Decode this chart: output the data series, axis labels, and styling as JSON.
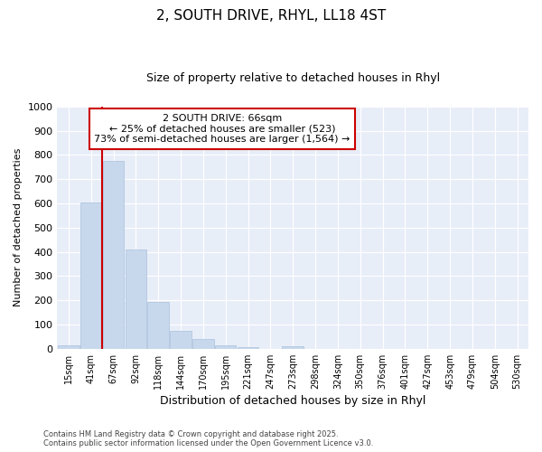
{
  "title": "2, SOUTH DRIVE, RHYL, LL18 4ST",
  "subtitle": "Size of property relative to detached houses in Rhyl",
  "xlabel": "Distribution of detached houses by size in Rhyl",
  "ylabel": "Number of detached properties",
  "categories": [
    "15sqm",
    "41sqm",
    "67sqm",
    "92sqm",
    "118sqm",
    "144sqm",
    "170sqm",
    "195sqm",
    "221sqm",
    "247sqm",
    "273sqm",
    "298sqm",
    "324sqm",
    "350sqm",
    "376sqm",
    "401sqm",
    "427sqm",
    "453sqm",
    "479sqm",
    "504sqm",
    "530sqm"
  ],
  "values": [
    15,
    605,
    775,
    410,
    193,
    75,
    40,
    15,
    5,
    0,
    10,
    0,
    0,
    0,
    0,
    0,
    0,
    0,
    0,
    0,
    0
  ],
  "bar_color": "#c8d8ec",
  "bar_edge_color": "#a8c0dc",
  "red_line_x": 1.5,
  "red_line_color": "#cc0000",
  "ylim": [
    0,
    1000
  ],
  "yticks": [
    0,
    100,
    200,
    300,
    400,
    500,
    600,
    700,
    800,
    900,
    1000
  ],
  "annotation_box_color": "#cc0000",
  "annotation_lines": [
    "2 SOUTH DRIVE: 66sqm",
    "← 25% of detached houses are smaller (523)",
    "73% of semi-detached houses are larger (1,564) →"
  ],
  "footer_line1": "Contains HM Land Registry data © Crown copyright and database right 2025.",
  "footer_line2": "Contains public sector information licensed under the Open Government Licence v3.0.",
  "background_color": "#ffffff",
  "plot_bg_color": "#e8eef8",
  "grid_color": "#ffffff",
  "title_fontsize": 11,
  "subtitle_fontsize": 9
}
